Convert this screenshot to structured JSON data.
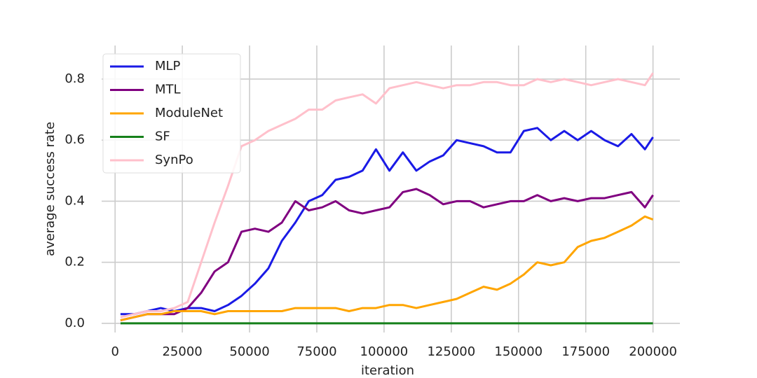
{
  "chart_data": {
    "type": "line",
    "x_label": "iteration",
    "y_label": "average success rate",
    "x": [
      2000,
      7000,
      12000,
      17000,
      22000,
      27000,
      32000,
      37000,
      42000,
      47000,
      52000,
      57000,
      62000,
      67000,
      72000,
      77000,
      82000,
      87000,
      92000,
      97000,
      102000,
      107000,
      112000,
      117000,
      122000,
      127000,
      132000,
      137000,
      142000,
      147000,
      152000,
      157000,
      162000,
      167000,
      172000,
      177000,
      182000,
      187000,
      192000,
      197000,
      200000
    ],
    "series": [
      {
        "name": "MLP",
        "color": "#1a1ae6",
        "values": [
          0.03,
          0.03,
          0.04,
          0.05,
          0.04,
          0.05,
          0.05,
          0.04,
          0.06,
          0.09,
          0.13,
          0.18,
          0.27,
          0.33,
          0.4,
          0.42,
          0.47,
          0.48,
          0.5,
          0.57,
          0.5,
          0.56,
          0.5,
          0.53,
          0.55,
          0.6,
          0.59,
          0.58,
          0.56,
          0.56,
          0.63,
          0.64,
          0.6,
          0.63,
          0.6,
          0.63,
          0.6,
          0.58,
          0.62,
          0.57,
          0.61
        ]
      },
      {
        "name": "MTL",
        "color": "#800080",
        "values": [
          0.01,
          0.02,
          0.03,
          0.03,
          0.03,
          0.05,
          0.1,
          0.17,
          0.2,
          0.3,
          0.31,
          0.3,
          0.33,
          0.4,
          0.37,
          0.38,
          0.4,
          0.37,
          0.36,
          0.37,
          0.38,
          0.43,
          0.44,
          0.42,
          0.39,
          0.4,
          0.4,
          0.38,
          0.39,
          0.4,
          0.4,
          0.42,
          0.4,
          0.41,
          0.4,
          0.41,
          0.41,
          0.42,
          0.43,
          0.38,
          0.42
        ]
      },
      {
        "name": "ModuleNet",
        "color": "#ffa500",
        "values": [
          0.01,
          0.02,
          0.03,
          0.03,
          0.04,
          0.04,
          0.04,
          0.03,
          0.04,
          0.04,
          0.04,
          0.04,
          0.04,
          0.05,
          0.05,
          0.05,
          0.05,
          0.04,
          0.05,
          0.05,
          0.06,
          0.06,
          0.05,
          0.06,
          0.07,
          0.08,
          0.1,
          0.12,
          0.11,
          0.13,
          0.16,
          0.2,
          0.19,
          0.2,
          0.25,
          0.27,
          0.28,
          0.3,
          0.32,
          0.35,
          0.34
        ]
      },
      {
        "name": "SF",
        "color": "#15801a",
        "values": [
          0,
          0,
          0,
          0,
          0,
          0,
          0,
          0,
          0,
          0,
          0,
          0,
          0,
          0,
          0,
          0,
          0,
          0,
          0,
          0,
          0,
          0,
          0,
          0,
          0,
          0,
          0,
          0,
          0,
          0,
          0,
          0,
          0,
          0,
          0,
          0,
          0,
          0,
          0,
          0,
          0
        ]
      },
      {
        "name": "SynPo",
        "color": "#ffc0cb",
        "values": [
          0.02,
          0.03,
          0.04,
          0.04,
          0.05,
          0.07,
          0.2,
          0.33,
          0.45,
          0.58,
          0.6,
          0.63,
          0.65,
          0.67,
          0.7,
          0.7,
          0.73,
          0.74,
          0.75,
          0.72,
          0.77,
          0.78,
          0.79,
          0.78,
          0.77,
          0.78,
          0.78,
          0.79,
          0.79,
          0.78,
          0.78,
          0.8,
          0.79,
          0.8,
          0.79,
          0.78,
          0.79,
          0.8,
          0.79,
          0.78,
          0.82
        ]
      }
    ],
    "xlim": [
      -5000,
      210000
    ],
    "ylim": [
      -0.03,
      0.91
    ],
    "xticks": [
      0,
      25000,
      50000,
      75000,
      100000,
      125000,
      150000,
      175000,
      200000
    ],
    "yticks": [
      {
        "value": 0,
        "label": "0.0"
      },
      0.2,
      0.4,
      0.6,
      0.8
    ],
    "grid": true,
    "legend": "upper left"
  }
}
